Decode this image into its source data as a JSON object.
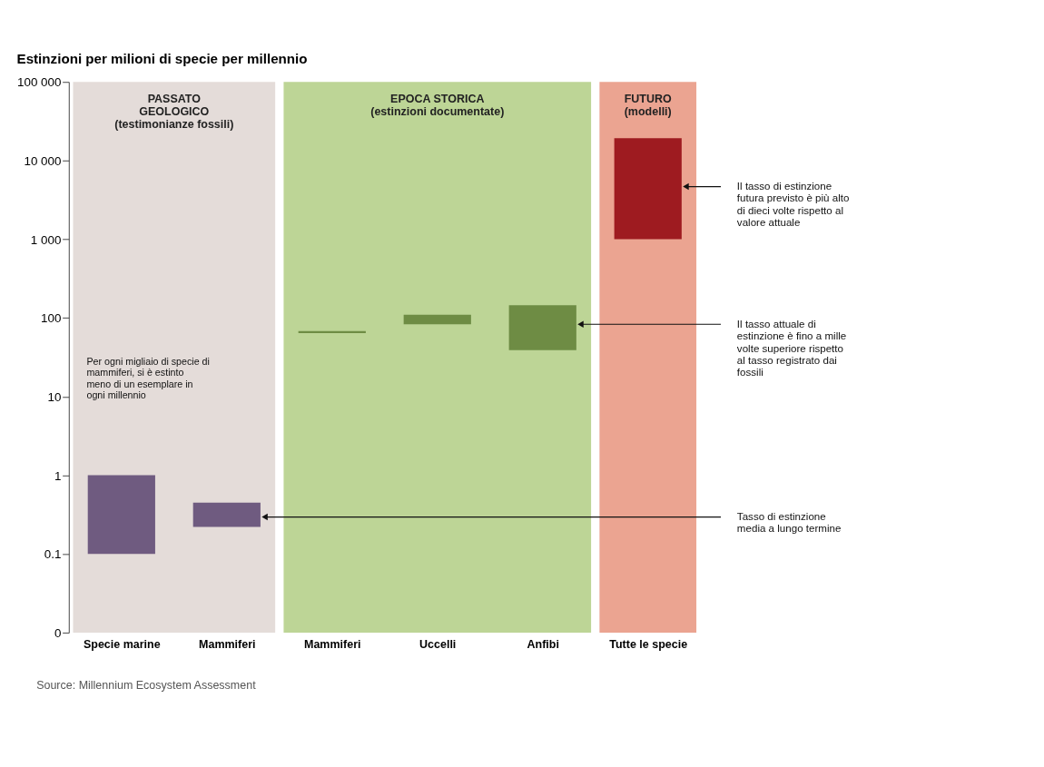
{
  "chart_data": {
    "type": "bar",
    "title": "Estinzioni per milioni di specie per millennio",
    "categories": [
      "Specie marine",
      "Mammiferi",
      "Mammiferi",
      "Uccelli",
      "Anfibi",
      "Tutte le specie"
    ],
    "base": [
      0.1,
      0.22,
      64,
      83,
      39,
      1000
    ],
    "values": [
      0.9,
      0.23,
      4,
      27,
      106,
      18300
    ],
    "colors": [
      "#6f5b80",
      "#6f5b80",
      "#6e8c44",
      "#6e8c44",
      "#6e8c44",
      "#9e1b20"
    ],
    "log": true,
    "ylim": [
      0.01,
      100000
    ],
    "yticks": [
      {
        "value": 0.01,
        "label": "0"
      },
      0.1,
      1,
      10,
      100,
      {
        "value": 1000,
        "label": "1 000"
      },
      {
        "value": 10000,
        "label": "10 000"
      },
      {
        "value": 100000,
        "label": "100 000"
      }
    ],
    "grid": false,
    "bands": [
      {
        "axis": "x",
        "from": "Specie marine",
        "to": "Mammiferi",
        "label": "PASSATO\nGEOLOGICO\n(testimonianze fossili)",
        "color": "#e4dcd9"
      },
      {
        "axis": "x",
        "from": "Mammiferi",
        "to": "Anfibi",
        "label": "EPOCA STORICA\n(estinzioni documentate)",
        "color": "#bdd596"
      },
      {
        "axis": "x",
        "from": "Tutte le specie",
        "to": "Tutte le specie",
        "label": "FUTURO\n(modelli)",
        "color": "#eba491"
      }
    ],
    "annotations": [
      "Per ogni migliaio di specie di\nmammiferi, si è estinto\nmeno di un esemplare in\nogni millennio",
      "Il tasso di estinzione\nfutura previsto è più alto\ndi dieci volte rispetto al\nvalore attuale",
      "Il tasso attuale di\nestinzione è fino a mille\nvolte superiore rispetto\nal tasso registrato dai\nfossili",
      "Tasso di estinzione\nmedia a lungo termine",
      "Source: Millennium Ecosystem Assessment"
    ]
  }
}
